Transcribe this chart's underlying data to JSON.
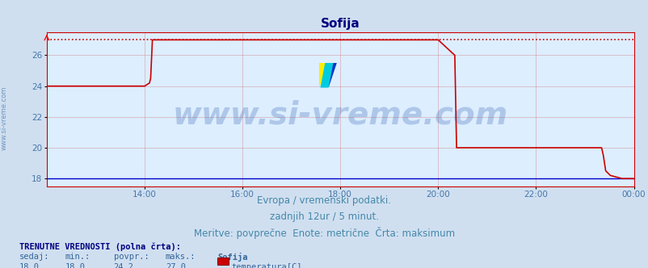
{
  "title": "Sofija",
  "title_color": "#000080",
  "title_fontsize": 11,
  "bg_color": "#d0dff0",
  "plot_bg_color": "#ddeeff",
  "line_color": "#cc0000",
  "dotted_line_color": "#cc0000",
  "grid_color_x": "#cc6666",
  "grid_color_y": "#cc6666",
  "axis_label_color": "#4477aa",
  "spine_color": "#cc0000",
  "watermark": "www.si-vreme.com",
  "watermark_color": "#2255aa",
  "watermark_alpha": 0.25,
  "watermark_fontsize": 28,
  "xlabel_text1": "Evropa / vremenski podatki.",
  "xlabel_text2": "zadnjih 12ur / 5 minut.",
  "xlabel_text3": "Meritve: povprečne  Enote: metrične  Črta: maksimum",
  "xlabel_color": "#4488aa",
  "xlabel_fontsize": 8.5,
  "sidebar_text": "www.si-vreme.com",
  "sidebar_color": "#4477aa",
  "sidebar_fontsize": 6,
  "ylim_min": 17.5,
  "ylim_max": 27.5,
  "ytick_vals": [
    18,
    20,
    22,
    24,
    26
  ],
  "xlim_min": 0.0,
  "xlim_max": 1.0,
  "xtick_positions": [
    0.1667,
    0.3333,
    0.5,
    0.6667,
    0.8333,
    1.0
  ],
  "xtick_labels": [
    "14:00",
    "16:00",
    "18:00",
    "20:00",
    "22:00",
    "00:00"
  ],
  "footer_bold": "TRENUTNE VREDNOSTI (polna črta):",
  "footer_col_headers": [
    "sedaj:",
    "min.:",
    "povpr.:",
    "maks.:",
    "Sofija"
  ],
  "footer_col_values": [
    "18,0",
    "18,0",
    "24,2",
    "27,0"
  ],
  "footer_legend_label": "temperatura[C]",
  "footer_legend_color": "#cc0000",
  "data_x": [
    0.0,
    0.1667,
    0.175,
    0.177,
    0.18,
    0.195,
    0.3333,
    0.5,
    0.6667,
    0.695,
    0.698,
    0.7,
    0.71,
    0.8333,
    0.9167,
    0.945,
    0.948,
    0.952,
    0.96,
    0.98,
    1.0
  ],
  "data_y": [
    24.0,
    24.0,
    24.2,
    24.5,
    27.0,
    27.0,
    27.0,
    27.0,
    27.0,
    26.0,
    20.0,
    20.0,
    20.0,
    20.0,
    20.0,
    20.0,
    19.5,
    18.5,
    18.2,
    18.0,
    18.0
  ],
  "max_line_y": 27.0,
  "baseline_y": 18.0,
  "baseline_color": "#0000cc"
}
